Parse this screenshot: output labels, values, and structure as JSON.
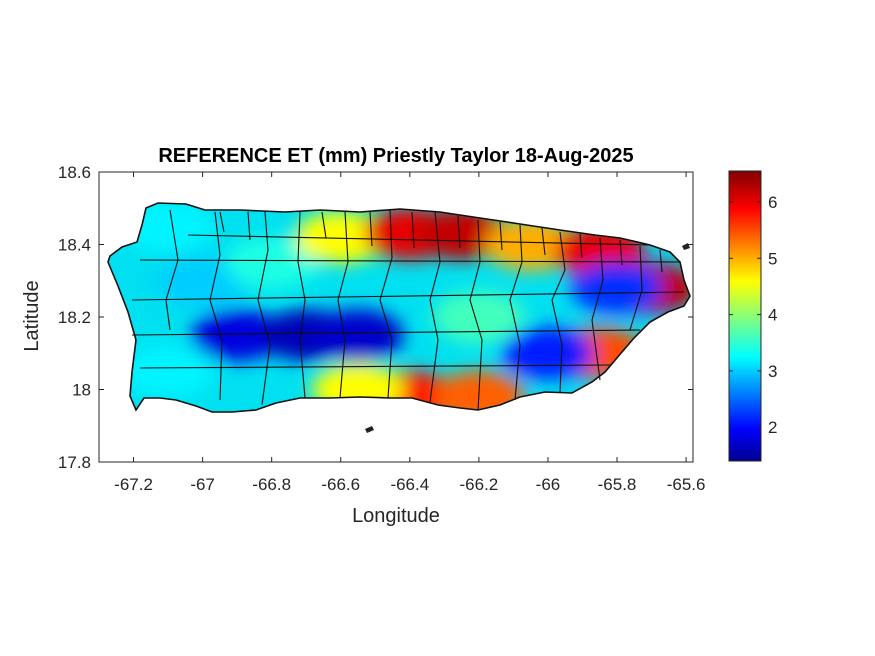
{
  "chart_data": {
    "type": "heatmap",
    "title": "REFERENCE ET (mm) Priestly Taylor 18-Aug-2025",
    "xlabel": "Longitude",
    "ylabel": "Latitude",
    "xlim": [
      -67.3,
      -65.58
    ],
    "ylim": [
      17.8,
      18.6
    ],
    "x_ticks": [
      "-67.2",
      "-67",
      "-66.8",
      "-66.6",
      "-66.4",
      "-66.2",
      "-66",
      "-65.8",
      "-65.6"
    ],
    "x_tick_values": [
      -67.2,
      -67.0,
      -66.8,
      -66.6,
      -66.4,
      -66.2,
      -66.0,
      -65.8,
      -65.6
    ],
    "y_ticks": [
      "17.8",
      "18",
      "18.2",
      "18.4",
      "18.6"
    ],
    "y_tick_values": [
      17.8,
      18.0,
      18.2,
      18.4,
      18.6
    ],
    "colorbar": {
      "colormap": "jet",
      "range": [
        1.4,
        6.55
      ],
      "ticks": [
        "2",
        "3",
        "4",
        "5",
        "6"
      ],
      "tick_values": [
        2,
        3,
        4,
        5,
        6
      ]
    },
    "grid": false,
    "regions": [
      {
        "lon": -67.1,
        "lat": 18.45,
        "et": 3.2
      },
      {
        "lon": -67.0,
        "lat": 18.3,
        "et": 3.0
      },
      {
        "lon": -67.1,
        "lat": 18.05,
        "et": 3.2
      },
      {
        "lon": -66.9,
        "lat": 18.15,
        "et": 1.8
      },
      {
        "lon": -66.7,
        "lat": 18.15,
        "et": 1.6
      },
      {
        "lon": -66.55,
        "lat": 18.15,
        "et": 1.7
      },
      {
        "lon": -66.8,
        "lat": 18.35,
        "et": 3.4
      },
      {
        "lon": -66.6,
        "lat": 18.42,
        "et": 4.6
      },
      {
        "lon": -66.4,
        "lat": 18.43,
        "et": 6.0
      },
      {
        "lon": -66.25,
        "lat": 18.43,
        "et": 6.2
      },
      {
        "lon": -66.05,
        "lat": 18.4,
        "et": 5.0
      },
      {
        "lon": -65.85,
        "lat": 18.38,
        "et": 6.0
      },
      {
        "lon": -65.7,
        "lat": 18.28,
        "et": 6.2
      },
      {
        "lon": -65.8,
        "lat": 18.28,
        "et": 2.2
      },
      {
        "lon": -65.85,
        "lat": 18.1,
        "et": 5.5
      },
      {
        "lon": -66.0,
        "lat": 18.1,
        "et": 2.1
      },
      {
        "lon": -66.2,
        "lat": 18.2,
        "et": 3.6
      },
      {
        "lon": -66.4,
        "lat": 17.98,
        "et": 5.8
      },
      {
        "lon": -66.55,
        "lat": 18.0,
        "et": 4.6
      },
      {
        "lon": -66.2,
        "lat": 17.98,
        "et": 5.4
      }
    ]
  }
}
